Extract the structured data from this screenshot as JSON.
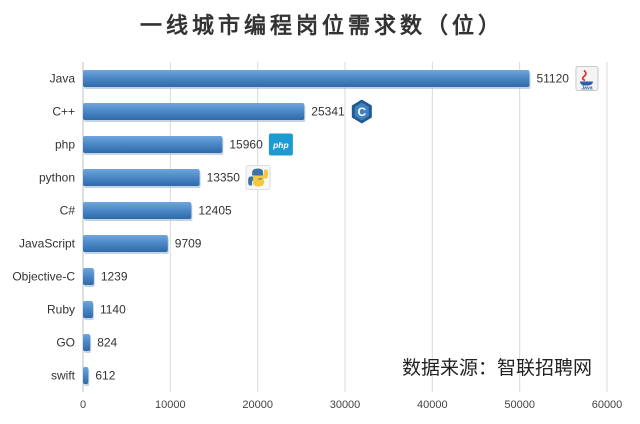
{
  "chart_data": {
    "type": "bar",
    "orientation": "horizontal",
    "title": "一线城市编程岗位需求数（位）",
    "categories": [
      "Java",
      "C++",
      "php",
      "python",
      "C#",
      "JavaScript",
      "Objective-C",
      "Ruby",
      "GO",
      "swift"
    ],
    "values": [
      51120,
      25341,
      15960,
      13350,
      12405,
      9709,
      1239,
      1140,
      824,
      612
    ],
    "value_labels": [
      "51120",
      "25341",
      "15960",
      "13350",
      "12405",
      "9709",
      "1239",
      "1140",
      "824",
      "612"
    ],
    "xlim": [
      0,
      60000
    ],
    "xticks": [
      0,
      10000,
      20000,
      30000,
      40000,
      50000,
      60000
    ],
    "xtick_labels": [
      "0",
      "10000",
      "20000",
      "30000",
      "40000",
      "50000",
      "60000"
    ],
    "xlabel": "",
    "ylabel": "",
    "grid": "vertical",
    "legend": "none",
    "bar_color": "#4a86c5",
    "annotation": "数据来源：智联招聘网"
  },
  "icons": [
    {
      "category": "Java",
      "name": "java-logo-icon",
      "text": "Java"
    },
    {
      "category": "C++",
      "name": "cpp-logo-icon",
      "text": "C"
    },
    {
      "category": "php",
      "name": "php-logo-icon",
      "text": "php"
    },
    {
      "category": "python",
      "name": "python-logo-icon",
      "text": ""
    }
  ]
}
